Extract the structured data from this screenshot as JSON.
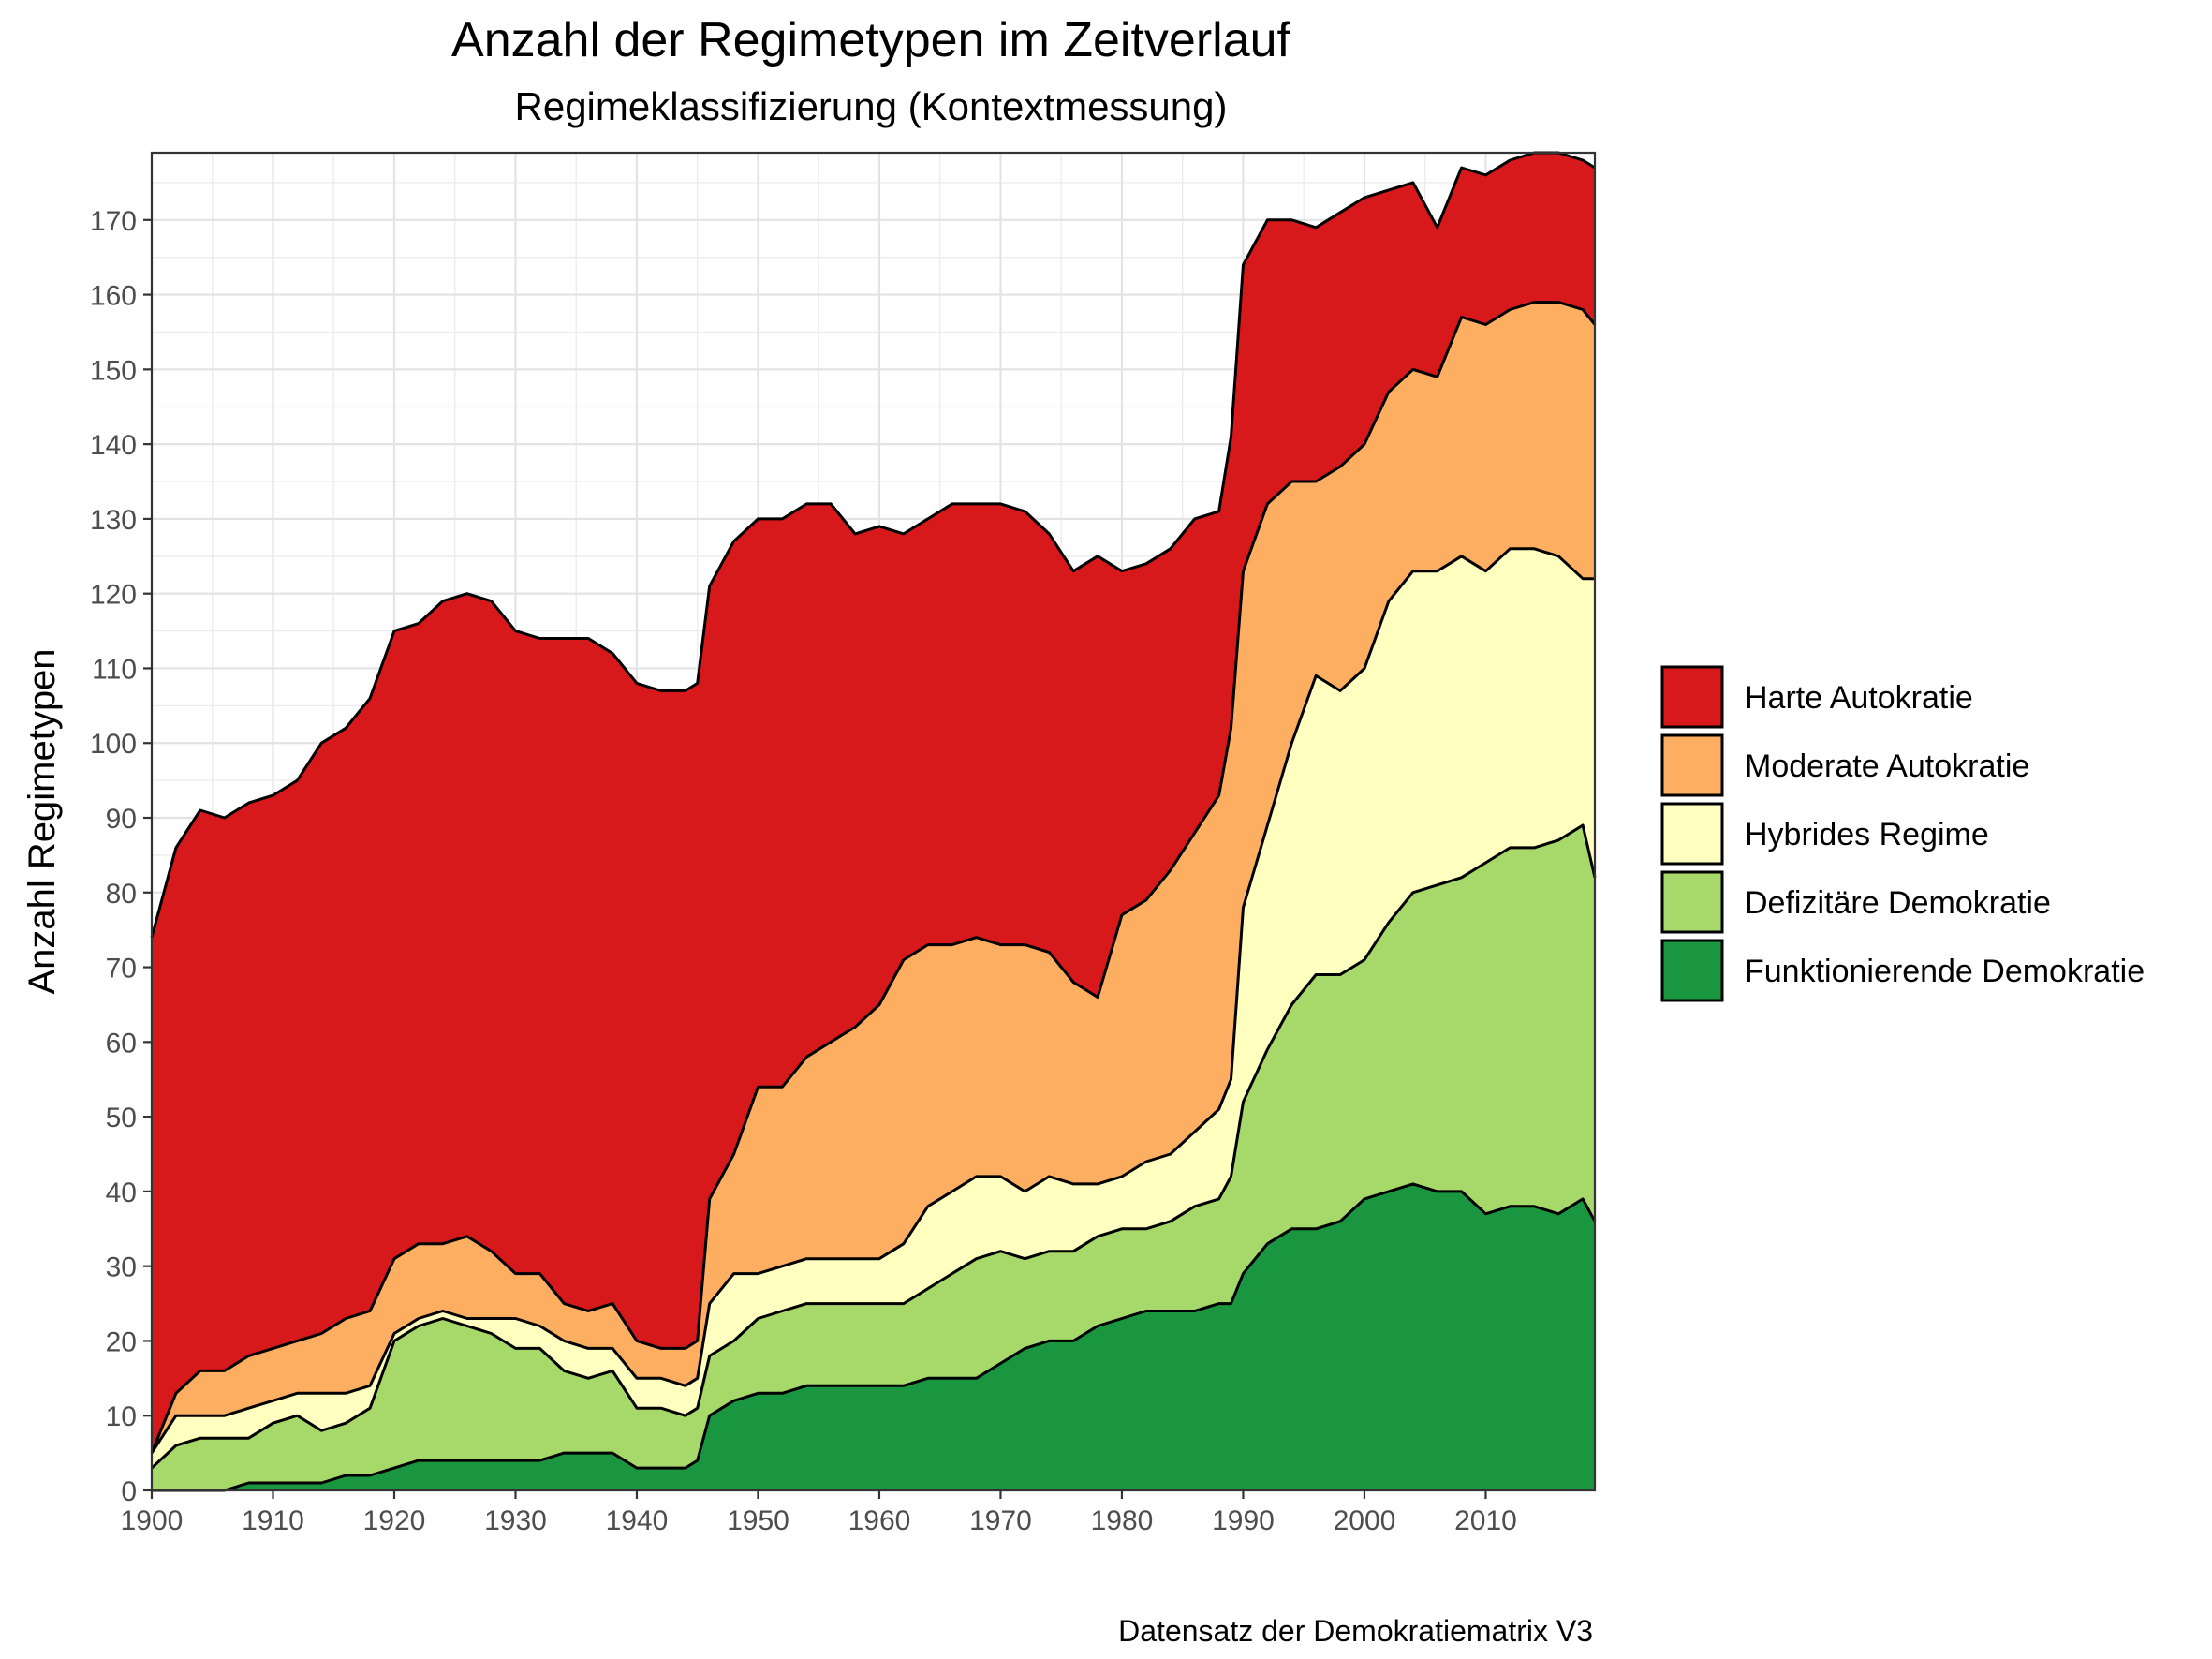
{
  "chart_data": {
    "type": "area",
    "stacked": true,
    "title": "Anzahl der Regimetypen im Zeitverlauf",
    "subtitle": "Regimeklassifizierung (Kontextmessung)",
    "xlabel": "",
    "ylabel": "Anzahl Regimetypen",
    "caption": "Datensatz der Demokratiematrix V3",
    "xlim": [
      1900,
      2019
    ],
    "ylim": [
      0,
      179
    ],
    "x_ticks": [
      1900,
      1910,
      1920,
      1930,
      1940,
      1950,
      1960,
      1970,
      1980,
      1990,
      2000,
      2010
    ],
    "y_ticks": [
      0,
      10,
      20,
      30,
      40,
      50,
      60,
      70,
      80,
      90,
      100,
      110,
      120,
      130,
      140,
      150,
      160,
      170
    ],
    "grid": true,
    "legend_position": "right",
    "x": [
      1900,
      1902,
      1904,
      1906,
      1908,
      1910,
      1912,
      1914,
      1916,
      1918,
      1920,
      1922,
      1924,
      1926,
      1928,
      1930,
      1932,
      1934,
      1936,
      1938,
      1940,
      1942,
      1944,
      1945,
      1946,
      1948,
      1950,
      1952,
      1954,
      1956,
      1958,
      1960,
      1962,
      1964,
      1966,
      1968,
      1970,
      1972,
      1974,
      1976,
      1978,
      1980,
      1982,
      1984,
      1986,
      1988,
      1989,
      1990,
      1992,
      1994,
      1996,
      1998,
      2000,
      2002,
      2004,
      2006,
      2008,
      2010,
      2012,
      2014,
      2016,
      2018,
      2019
    ],
    "series": [
      {
        "name": "Funktionierende Demokratie",
        "color": "#1a9641",
        "values": [
          0,
          0,
          0,
          0,
          1,
          1,
          1,
          1,
          2,
          2,
          3,
          4,
          4,
          4,
          4,
          4,
          4,
          5,
          5,
          5,
          3,
          3,
          3,
          4,
          10,
          12,
          13,
          13,
          14,
          14,
          14,
          14,
          14,
          15,
          15,
          15,
          17,
          19,
          20,
          20,
          22,
          23,
          24,
          24,
          24,
          25,
          25,
          29,
          33,
          35,
          35,
          36,
          39,
          40,
          41,
          40,
          40,
          37,
          38,
          38,
          37,
          39,
          36
        ]
      },
      {
        "name": "Defizitäre Demokratie",
        "color": "#a6d96a",
        "values": [
          3,
          6,
          7,
          7,
          6,
          8,
          9,
          7,
          7,
          9,
          17,
          18,
          19,
          18,
          17,
          15,
          15,
          11,
          10,
          11,
          8,
          8,
          7,
          7,
          8,
          8,
          10,
          11,
          11,
          11,
          11,
          11,
          11,
          12,
          14,
          16,
          15,
          12,
          12,
          12,
          12,
          12,
          11,
          12,
          14,
          14,
          17,
          23,
          26,
          30,
          34,
          33,
          32,
          36,
          39,
          41,
          42,
          47,
          48,
          48,
          50,
          50,
          46
        ]
      },
      {
        "name": "Hybrides Regime",
        "color": "#ffffbf",
        "values": [
          2,
          4,
          3,
          3,
          4,
          3,
          3,
          5,
          4,
          3,
          1,
          1,
          1,
          1,
          2,
          4,
          3,
          4,
          4,
          3,
          4,
          4,
          4,
          4,
          7,
          9,
          6,
          6,
          6,
          6,
          6,
          6,
          8,
          11,
          11,
          11,
          10,
          9,
          10,
          9,
          7,
          7,
          9,
          9,
          10,
          12,
          13,
          26,
          30,
          35,
          40,
          38,
          39,
          43,
          43,
          42,
          43,
          39,
          40,
          40,
          38,
          33,
          40
        ]
      },
      {
        "name": "Moderate Autokratie",
        "color": "#fdae61",
        "values": [
          0,
          3,
          6,
          6,
          7,
          7,
          7,
          8,
          10,
          10,
          10,
          10,
          9,
          11,
          9,
          6,
          7,
          5,
          5,
          6,
          5,
          4,
          5,
          5,
          14,
          16,
          25,
          24,
          27,
          29,
          31,
          34,
          38,
          35,
          33,
          32,
          31,
          33,
          30,
          27,
          25,
          35,
          35,
          38,
          40,
          42,
          47,
          45,
          43,
          35,
          26,
          30,
          30,
          28,
          27,
          26,
          32,
          33,
          32,
          33,
          34,
          36,
          34
        ]
      },
      {
        "name": "Harte Autokratie",
        "color": "#d7191c",
        "values": [
          69,
          73,
          75,
          74,
          74,
          74,
          75,
          79,
          79,
          82,
          84,
          83,
          86,
          86,
          87,
          86,
          85,
          89,
          90,
          87,
          88,
          88,
          88,
          88,
          82,
          82,
          76,
          76,
          74,
          72,
          66,
          64,
          57,
          57,
          59,
          58,
          59,
          58,
          56,
          55,
          59,
          46,
          45,
          43,
          42,
          38,
          39,
          41,
          38,
          35,
          34,
          34,
          33,
          27,
          25,
          20,
          20,
          20,
          20,
          20,
          20,
          20,
          21
        ]
      }
    ]
  }
}
